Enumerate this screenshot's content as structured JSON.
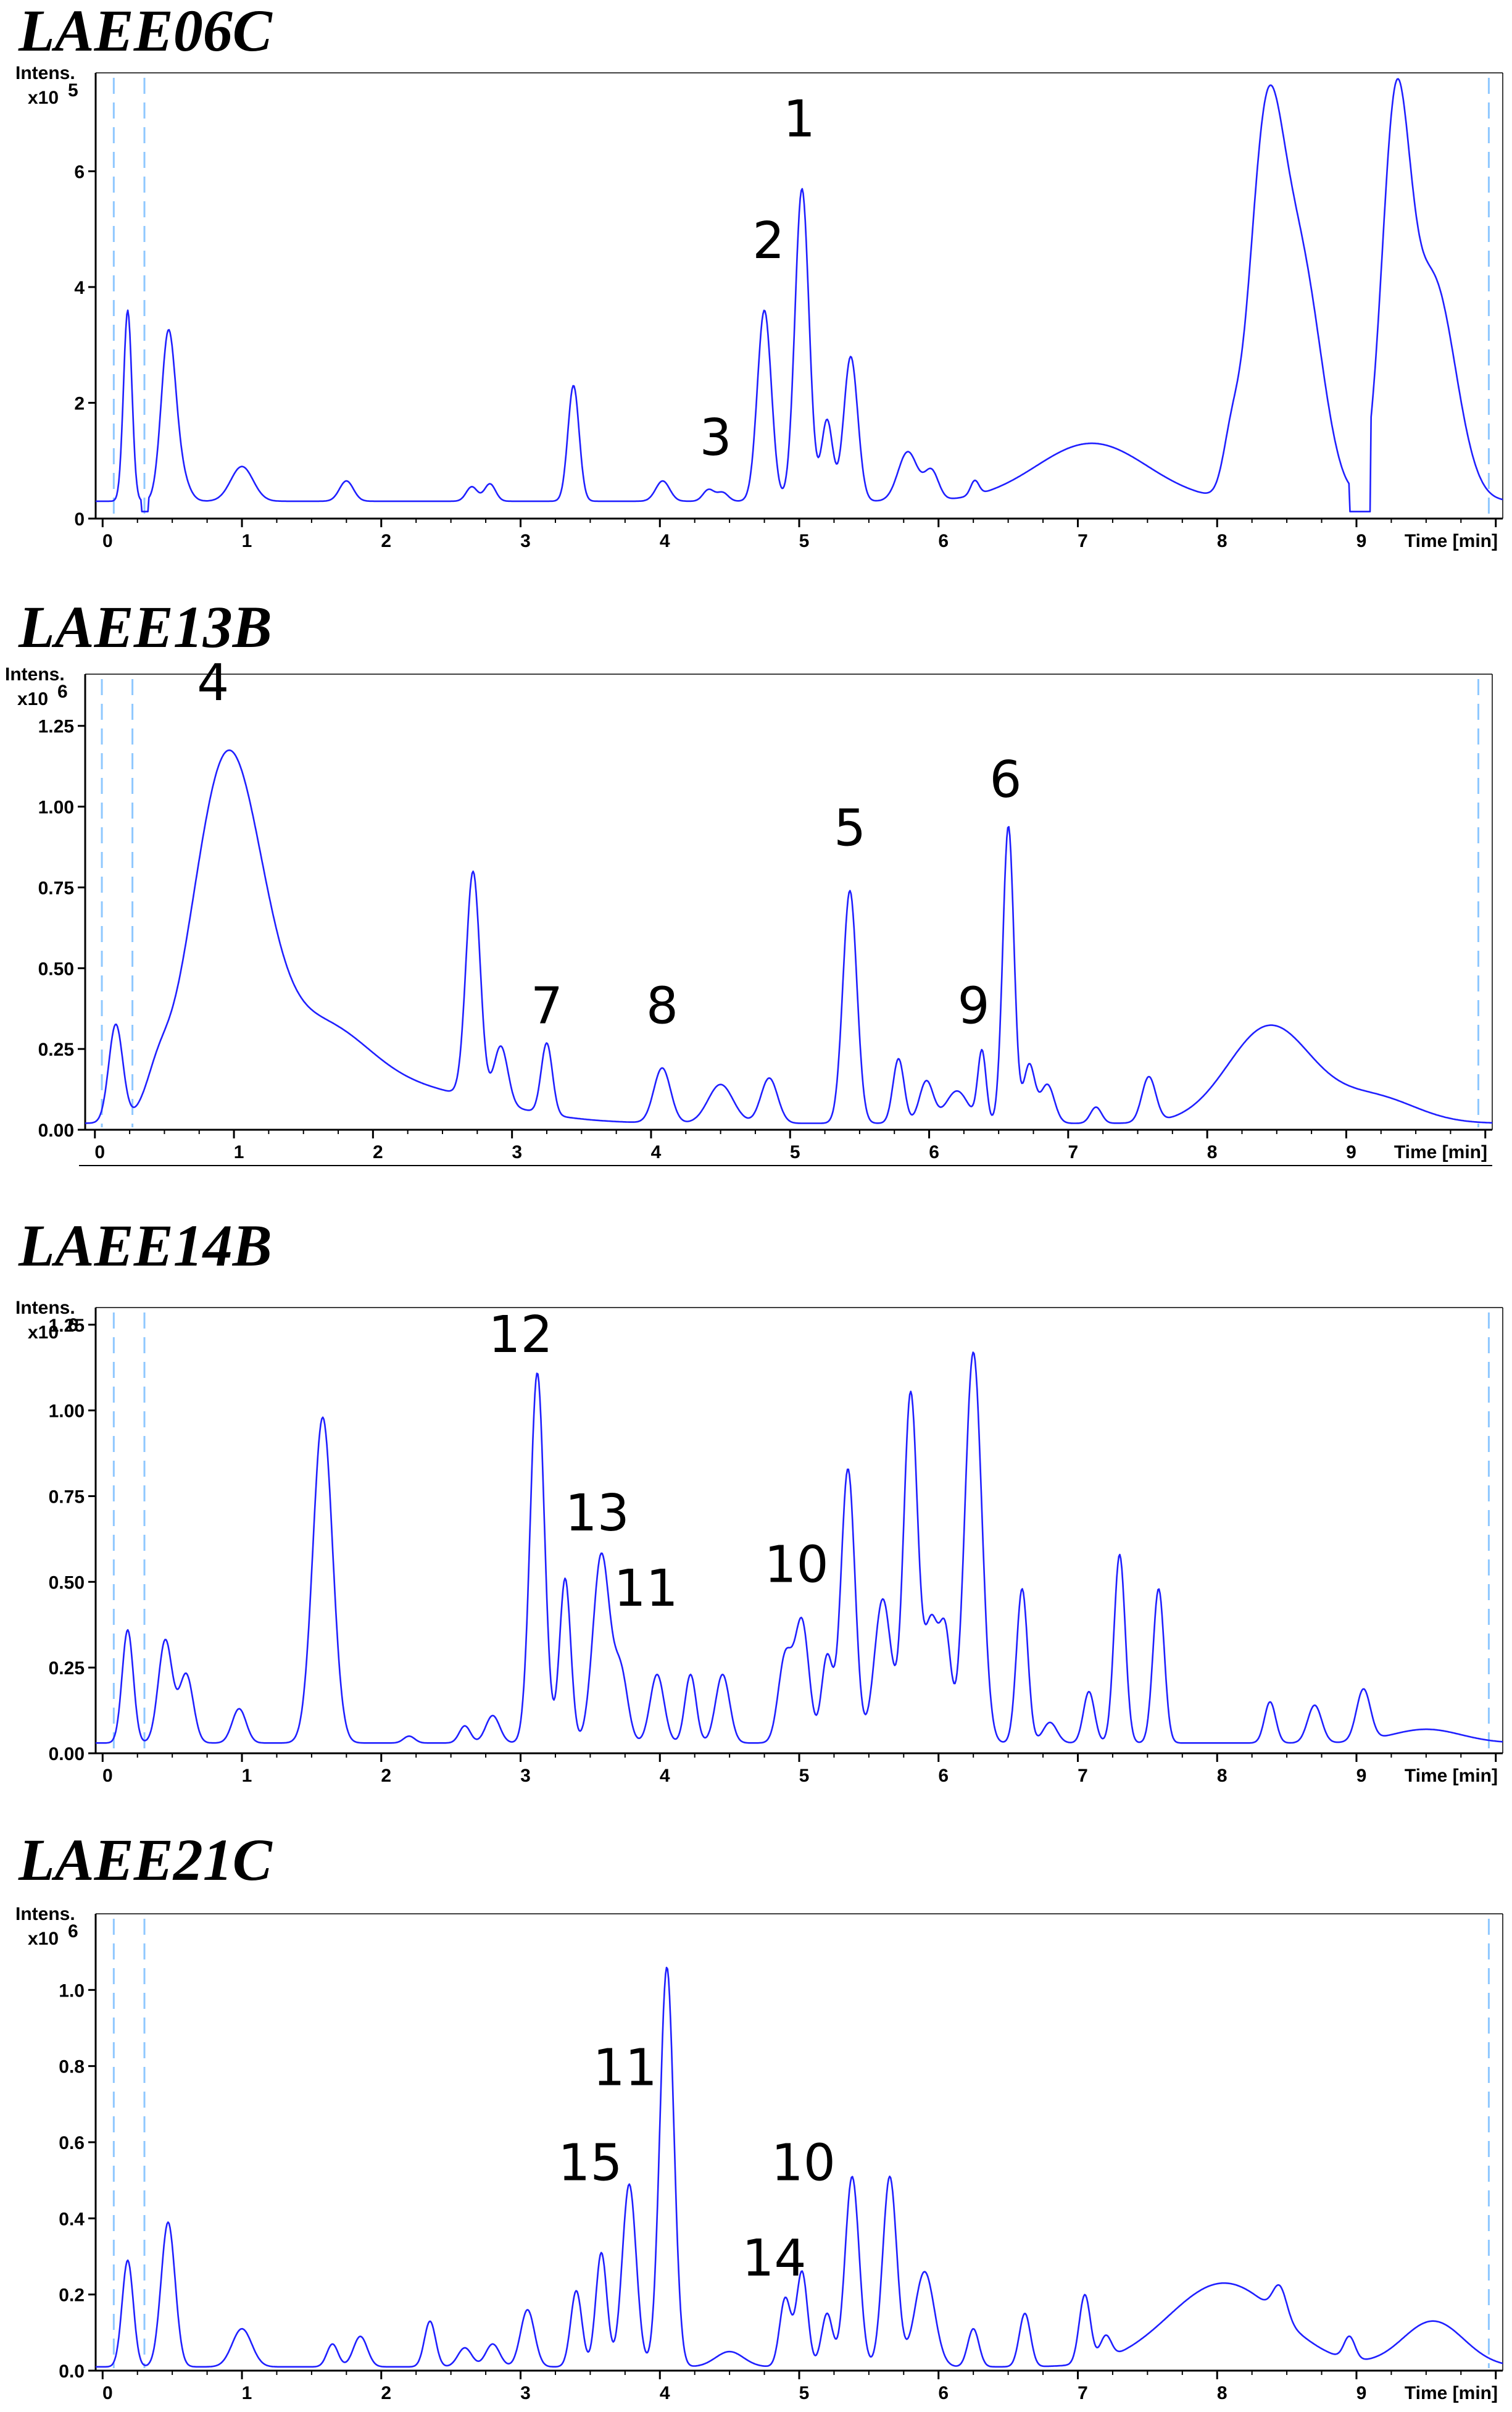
{
  "chart_data": [
    {
      "type": "line",
      "title": "LAEE06C",
      "ylabel": "Intens.",
      "ymultiplier": "x10",
      "ymultiplier_exp": "5",
      "xlabel": "Time [min]",
      "xlim": [
        -0.05,
        10.05
      ],
      "ylim": [
        0,
        7.7
      ],
      "xticks": [
        0,
        1,
        2,
        3,
        4,
        5,
        6,
        7,
        8,
        9
      ],
      "yticks": [
        0,
        2,
        4,
        6
      ],
      "ytick_labels": [
        "0",
        "2",
        "4",
        "6"
      ],
      "ref_lines": [
        0.08,
        0.3,
        9.95
      ],
      "baseline": 0.3,
      "peaks": [
        [
          0.18,
          3.3,
          0.03
        ],
        [
          0.47,
          2.75,
          0.05
        ],
        [
          0.55,
          0.5,
          0.06
        ],
        [
          1.0,
          0.6,
          0.08
        ],
        [
          1.75,
          0.35,
          0.05
        ],
        [
          2.65,
          0.25,
          0.04
        ],
        [
          2.78,
          0.3,
          0.04
        ],
        [
          3.38,
          2.0,
          0.04
        ],
        [
          4.02,
          0.35,
          0.05
        ],
        [
          4.35,
          0.2,
          0.04
        ],
        [
          4.45,
          0.15,
          0.04
        ],
        [
          4.75,
          3.3,
          0.05
        ],
        [
          5.02,
          5.4,
          0.05
        ],
        [
          5.2,
          1.4,
          0.04
        ],
        [
          5.37,
          2.5,
          0.05
        ],
        [
          5.78,
          0.85,
          0.07
        ],
        [
          5.95,
          0.5,
          0.05
        ],
        [
          6.26,
          0.25,
          0.03
        ],
        [
          7.1,
          1.0,
          0.4
        ],
        [
          8.1,
          0.8,
          0.06
        ],
        [
          8.35,
          6.0,
          0.12
        ],
        [
          8.6,
          4.0,
          0.15
        ],
        [
          9.28,
          6.3,
          0.1
        ],
        [
          9.55,
          3.8,
          0.16
        ]
      ],
      "gaps": [
        [
          0.28,
          0.33
        ],
        [
          8.95,
          9.1
        ]
      ],
      "annotations": [
        {
          "label": "1",
          "x": 5.0,
          "y": 6.6
        },
        {
          "label": "2",
          "x": 4.78,
          "y": 4.5
        },
        {
          "label": "3",
          "x": 4.4,
          "y": 1.1
        }
      ]
    },
    {
      "type": "line",
      "title": "LAEE13B",
      "ylabel": "Intens.",
      "ymultiplier": "x10",
      "ymultiplier_exp": "6",
      "xlabel": "Time [min]",
      "xlim": [
        -0.07,
        10.05
      ],
      "ylim": [
        0,
        1.41
      ],
      "xticks": [
        0,
        1,
        2,
        3,
        4,
        5,
        6,
        7,
        8,
        9
      ],
      "yticks": [
        0,
        0.25,
        0.5,
        0.75,
        1.0,
        1.25
      ],
      "ytick_labels": [
        "0.00",
        "0.25",
        "0.50",
        "0.75",
        "1.00",
        "1.25"
      ],
      "ref_lines": [
        0.05,
        0.27,
        9.95
      ],
      "baseline": 0.02,
      "peaks": [
        [
          0.15,
          0.3,
          0.05
        ],
        [
          0.45,
          0.08,
          0.08
        ],
        [
          0.95,
          1.1,
          0.25
        ],
        [
          1.6,
          0.25,
          0.35
        ],
        [
          2.3,
          0.1,
          0.6
        ],
        [
          2.72,
          0.7,
          0.05
        ],
        [
          2.92,
          0.18,
          0.05
        ],
        [
          3.25,
          0.22,
          0.04
        ],
        [
          4.08,
          0.17,
          0.06
        ],
        [
          4.5,
          0.12,
          0.09
        ],
        [
          4.85,
          0.14,
          0.06
        ],
        [
          5.43,
          0.72,
          0.05
        ],
        [
          5.78,
          0.2,
          0.04
        ],
        [
          5.98,
          0.13,
          0.05
        ],
        [
          6.2,
          0.1,
          0.08
        ],
        [
          6.38,
          0.22,
          0.03
        ],
        [
          6.57,
          0.92,
          0.04
        ],
        [
          6.72,
          0.18,
          0.04
        ],
        [
          6.85,
          0.12,
          0.05
        ],
        [
          7.2,
          0.05,
          0.04
        ],
        [
          7.58,
          0.14,
          0.05
        ],
        [
          8.45,
          0.3,
          0.3
        ],
        [
          9.2,
          0.08,
          0.3
        ]
      ],
      "gaps": [],
      "annotations": [
        {
          "label": "4",
          "x": 0.85,
          "y": 1.33
        },
        {
          "label": "5",
          "x": 5.43,
          "y": 0.88
        },
        {
          "label": "6",
          "x": 6.55,
          "y": 1.03
        },
        {
          "label": "7",
          "x": 3.25,
          "y": 0.33
        },
        {
          "label": "8",
          "x": 4.08,
          "y": 0.33
        },
        {
          "label": "9",
          "x": 6.32,
          "y": 0.33
        }
      ]
    },
    {
      "type": "line",
      "title": "LAEE14B",
      "ylabel": "Intens.",
      "ymultiplier": "x10",
      "ymultiplier_exp": "6",
      "xlabel": "Time [min]",
      "xlim": [
        -0.05,
        10.05
      ],
      "ylim": [
        0,
        1.3
      ],
      "xticks": [
        0,
        1,
        2,
        3,
        4,
        5,
        6,
        7,
        8,
        9
      ],
      "yticks": [
        0,
        0.25,
        0.5,
        0.75,
        1.0,
        1.25
      ],
      "ytick_labels": [
        "0.00",
        "0.25",
        "0.50",
        "0.75",
        "1.00",
        "1.25"
      ],
      "ref_lines": [
        0.08,
        0.3,
        9.95
      ],
      "baseline": 0.03,
      "peaks": [
        [
          0.18,
          0.33,
          0.04
        ],
        [
          0.45,
          0.3,
          0.05
        ],
        [
          0.6,
          0.2,
          0.05
        ],
        [
          0.98,
          0.1,
          0.05
        ],
        [
          1.58,
          0.95,
          0.07
        ],
        [
          2.2,
          0.02,
          0.04
        ],
        [
          2.6,
          0.05,
          0.04
        ],
        [
          2.8,
          0.08,
          0.05
        ],
        [
          3.12,
          1.08,
          0.05
        ],
        [
          3.32,
          0.48,
          0.04
        ],
        [
          3.58,
          0.55,
          0.06
        ],
        [
          3.72,
          0.2,
          0.05
        ],
        [
          3.98,
          0.2,
          0.05
        ],
        [
          4.22,
          0.2,
          0.04
        ],
        [
          4.45,
          0.2,
          0.05
        ],
        [
          4.9,
          0.25,
          0.05
        ],
        [
          5.02,
          0.35,
          0.05
        ],
        [
          5.2,
          0.25,
          0.04
        ],
        [
          5.35,
          0.8,
          0.05
        ],
        [
          5.6,
          0.42,
          0.06
        ],
        [
          5.8,
          1.02,
          0.05
        ],
        [
          5.95,
          0.35,
          0.05
        ],
        [
          6.05,
          0.3,
          0.04
        ],
        [
          6.25,
          1.14,
          0.06
        ],
        [
          6.6,
          0.45,
          0.04
        ],
        [
          6.8,
          0.06,
          0.05
        ],
        [
          7.08,
          0.15,
          0.04
        ],
        [
          7.3,
          0.55,
          0.04
        ],
        [
          7.58,
          0.45,
          0.04
        ],
        [
          8.38,
          0.12,
          0.04
        ],
        [
          8.7,
          0.11,
          0.05
        ],
        [
          9.05,
          0.15,
          0.05
        ],
        [
          9.5,
          0.04,
          0.25
        ]
      ],
      "gaps": [],
      "annotations": [
        {
          "label": "12",
          "x": 3.0,
          "y": 1.17
        },
        {
          "label": "13",
          "x": 3.55,
          "y": 0.65
        },
        {
          "label": "11",
          "x": 3.9,
          "y": 0.43
        },
        {
          "label": "10",
          "x": 4.98,
          "y": 0.5
        }
      ]
    },
    {
      "type": "line",
      "title": "LAEE21C",
      "ylabel": "Intens.",
      "ymultiplier": "x10",
      "ymultiplier_exp": "6",
      "xlabel": "Time [min]",
      "xlim": [
        -0.05,
        10.05
      ],
      "ylim": [
        0,
        1.2
      ],
      "xticks": [
        0,
        1,
        2,
        3,
        4,
        5,
        6,
        7,
        8,
        9
      ],
      "yticks": [
        0,
        0.2,
        0.4,
        0.6,
        0.8,
        1.0
      ],
      "ytick_labels": [
        "0.0",
        "0.2",
        "0.4",
        "0.6",
        "0.8",
        "1.0"
      ],
      "ref_lines": [
        0.08,
        0.3,
        9.95
      ],
      "baseline": 0.01,
      "peaks": [
        [
          0.18,
          0.28,
          0.04
        ],
        [
          0.47,
          0.38,
          0.05
        ],
        [
          1.0,
          0.1,
          0.07
        ],
        [
          1.65,
          0.06,
          0.04
        ],
        [
          1.85,
          0.08,
          0.05
        ],
        [
          2.35,
          0.12,
          0.04
        ],
        [
          2.6,
          0.05,
          0.05
        ],
        [
          2.8,
          0.06,
          0.05
        ],
        [
          3.05,
          0.15,
          0.05
        ],
        [
          3.4,
          0.2,
          0.04
        ],
        [
          3.58,
          0.3,
          0.04
        ],
        [
          3.78,
          0.48,
          0.05
        ],
        [
          4.05,
          1.05,
          0.05
        ],
        [
          4.5,
          0.04,
          0.1
        ],
        [
          4.9,
          0.18,
          0.04
        ],
        [
          5.02,
          0.25,
          0.04
        ],
        [
          5.2,
          0.14,
          0.04
        ],
        [
          5.38,
          0.5,
          0.05
        ],
        [
          5.65,
          0.5,
          0.05
        ],
        [
          5.9,
          0.25,
          0.07
        ],
        [
          6.25,
          0.1,
          0.04
        ],
        [
          6.62,
          0.14,
          0.04
        ],
        [
          7.05,
          0.18,
          0.04
        ],
        [
          7.2,
          0.06,
          0.04
        ],
        [
          8.05,
          0.22,
          0.4
        ],
        [
          8.45,
          0.08,
          0.05
        ],
        [
          8.95,
          0.06,
          0.04
        ],
        [
          9.55,
          0.12,
          0.22
        ]
      ],
      "gaps": [],
      "annotations": [
        {
          "label": "11",
          "x": 3.75,
          "y": 0.75
        },
        {
          "label": "15",
          "x": 3.5,
          "y": 0.5
        },
        {
          "label": "10",
          "x": 5.03,
          "y": 0.5
        },
        {
          "label": "14",
          "x": 4.82,
          "y": 0.25
        }
      ]
    }
  ]
}
